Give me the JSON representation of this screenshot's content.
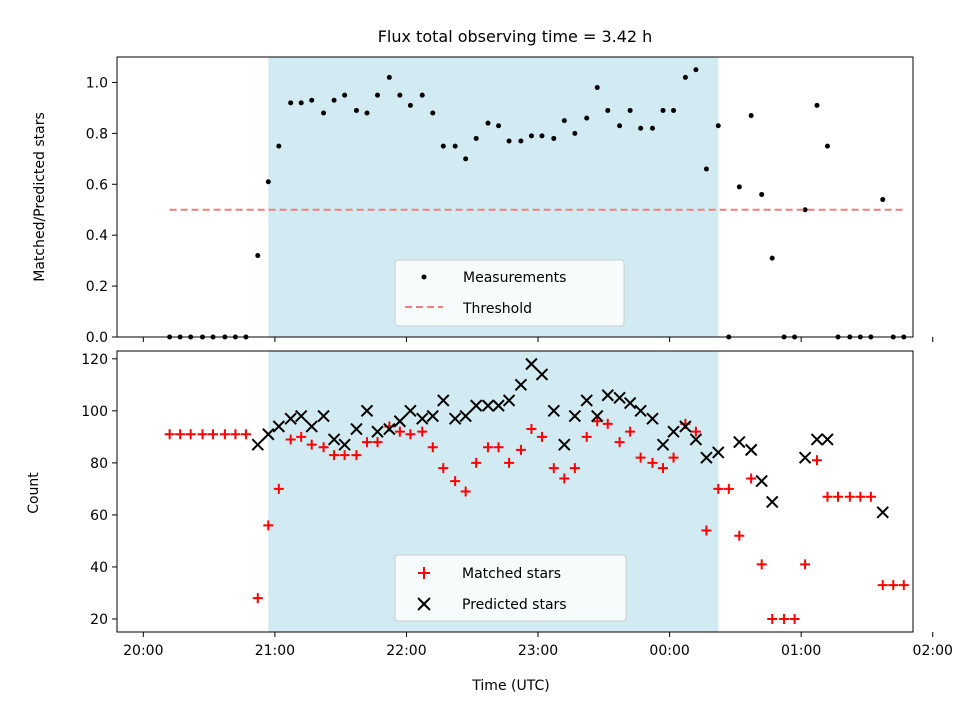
{
  "figure": {
    "title": "Flux total observing time = 3.42 h",
    "xlabel": "Time (UTC)",
    "colors": {
      "shade": "#add8e6",
      "threshold": "#f08080",
      "matched": "#ff0000",
      "predicted": "#000000",
      "measurements": "#000000"
    }
  },
  "chart_data": [
    {
      "type": "scatter",
      "panel": "top",
      "ylabel": "Matched/Predicted stars",
      "xlim": [
        -0.2,
        5.85
      ],
      "ylim": [
        0,
        1.1
      ],
      "xtick_values": [
        0,
        1,
        2,
        3,
        4,
        5,
        6
      ],
      "ytick_values": [
        0,
        0.2,
        0.4,
        0.6,
        0.8,
        1.0
      ],
      "ytick_labels": [
        "0.0",
        "0.2",
        "0.4",
        "0.6",
        "0.8",
        "1.0"
      ],
      "shaded_span": [
        0.95,
        4.37
      ],
      "legend": {
        "position": "lower center",
        "entries": [
          "Measurements",
          "Threshold"
        ]
      },
      "series": [
        {
          "name": "Measurements",
          "marker": "dot",
          "points": [
            [
              0.2,
              0.0
            ],
            [
              0.28,
              0.0
            ],
            [
              0.36,
              0.0
            ],
            [
              0.45,
              0.0
            ],
            [
              0.53,
              0.0
            ],
            [
              0.62,
              0.0
            ],
            [
              0.7,
              0.0
            ],
            [
              0.78,
              0.0
            ],
            [
              0.87,
              0.32
            ],
            [
              0.95,
              0.61
            ],
            [
              1.03,
              0.75
            ],
            [
              1.12,
              0.92
            ],
            [
              1.2,
              0.92
            ],
            [
              1.28,
              0.93
            ],
            [
              1.37,
              0.88
            ],
            [
              1.45,
              0.93
            ],
            [
              1.53,
              0.95
            ],
            [
              1.62,
              0.89
            ],
            [
              1.7,
              0.88
            ],
            [
              1.78,
              0.95
            ],
            [
              1.87,
              1.02
            ],
            [
              1.95,
              0.95
            ],
            [
              2.03,
              0.91
            ],
            [
              2.12,
              0.95
            ],
            [
              2.2,
              0.88
            ],
            [
              2.28,
              0.75
            ],
            [
              2.37,
              0.75
            ],
            [
              2.45,
              0.7
            ],
            [
              2.53,
              0.78
            ],
            [
              2.62,
              0.84
            ],
            [
              2.7,
              0.83
            ],
            [
              2.78,
              0.77
            ],
            [
              2.87,
              0.77
            ],
            [
              2.95,
              0.79
            ],
            [
              3.03,
              0.79
            ],
            [
              3.12,
              0.78
            ],
            [
              3.2,
              0.85
            ],
            [
              3.28,
              0.8
            ],
            [
              3.37,
              0.86
            ],
            [
              3.45,
              0.98
            ],
            [
              3.53,
              0.89
            ],
            [
              3.62,
              0.83
            ],
            [
              3.7,
              0.89
            ],
            [
              3.78,
              0.82
            ],
            [
              3.87,
              0.82
            ],
            [
              3.95,
              0.89
            ],
            [
              4.03,
              0.89
            ],
            [
              4.12,
              1.02
            ],
            [
              4.2,
              1.05
            ],
            [
              4.28,
              0.66
            ],
            [
              4.37,
              0.83
            ],
            [
              4.45,
              0.0
            ],
            [
              4.53,
              0.59
            ],
            [
              4.62,
              0.87
            ],
            [
              4.7,
              0.56
            ],
            [
              4.78,
              0.31
            ],
            [
              4.87,
              0.0
            ],
            [
              4.95,
              0.0
            ],
            [
              5.03,
              0.5
            ],
            [
              5.12,
              0.91
            ],
            [
              5.2,
              0.75
            ],
            [
              5.28,
              0.0
            ],
            [
              5.37,
              0.0
            ],
            [
              5.45,
              0.0
            ],
            [
              5.53,
              0.0
            ],
            [
              5.62,
              0.54
            ],
            [
              5.7,
              0.0
            ],
            [
              5.78,
              0.0
            ]
          ]
        },
        {
          "name": "Threshold",
          "marker": "dashed-line",
          "points": [
            [
              0.2,
              0.5
            ],
            [
              5.78,
              0.5
            ]
          ]
        }
      ]
    },
    {
      "type": "scatter",
      "panel": "bottom",
      "ylabel": "Count",
      "xlabel": "Time (UTC)",
      "xlim": [
        -0.2,
        5.85
      ],
      "ylim": [
        15,
        123
      ],
      "xtick_values": [
        0,
        1,
        2,
        3,
        4,
        5,
        6
      ],
      "xtick_labels": [
        "20:00",
        "21:00",
        "22:00",
        "23:00",
        "00:00",
        "01:00",
        "02:00"
      ],
      "ytick_values": [
        20,
        40,
        60,
        80,
        100,
        120
      ],
      "ytick_labels": [
        "20",
        "40",
        "60",
        "80",
        "100",
        "120"
      ],
      "shaded_span": [
        0.95,
        4.37
      ],
      "legend": {
        "position": "lower center",
        "entries": [
          "Matched stars",
          "Predicted stars"
        ]
      },
      "series": [
        {
          "name": "Matched stars",
          "marker": "plus",
          "points": [
            [
              0.2,
              91
            ],
            [
              0.28,
              91
            ],
            [
              0.36,
              91
            ],
            [
              0.45,
              91
            ],
            [
              0.53,
              91
            ],
            [
              0.62,
              91
            ],
            [
              0.7,
              91
            ],
            [
              0.78,
              91
            ],
            [
              0.87,
              28
            ],
            [
              0.95,
              56
            ],
            [
              1.03,
              70
            ],
            [
              1.12,
              89
            ],
            [
              1.2,
              90
            ],
            [
              1.28,
              87
            ],
            [
              1.37,
              86
            ],
            [
              1.45,
              83
            ],
            [
              1.53,
              83
            ],
            [
              1.62,
              83
            ],
            [
              1.7,
              88
            ],
            [
              1.78,
              88
            ],
            [
              1.87,
              94
            ],
            [
              1.95,
              92
            ],
            [
              2.03,
              91
            ],
            [
              2.12,
              92
            ],
            [
              2.2,
              86
            ],
            [
              2.28,
              78
            ],
            [
              2.37,
              73
            ],
            [
              2.45,
              69
            ],
            [
              2.53,
              80
            ],
            [
              2.62,
              86
            ],
            [
              2.7,
              86
            ],
            [
              2.78,
              80
            ],
            [
              2.87,
              85
            ],
            [
              2.95,
              93
            ],
            [
              3.03,
              90
            ],
            [
              3.12,
              78
            ],
            [
              3.2,
              74
            ],
            [
              3.28,
              78
            ],
            [
              3.37,
              90
            ],
            [
              3.45,
              96
            ],
            [
              3.53,
              95
            ],
            [
              3.62,
              88
            ],
            [
              3.7,
              92
            ],
            [
              3.78,
              82
            ],
            [
              3.87,
              80
            ],
            [
              3.95,
              78
            ],
            [
              4.03,
              82
            ],
            [
              4.12,
              95
            ],
            [
              4.2,
              92
            ],
            [
              4.28,
              54
            ],
            [
              4.37,
              70
            ],
            [
              4.45,
              70
            ],
            [
              4.53,
              52
            ],
            [
              4.62,
              74
            ],
            [
              4.7,
              41
            ],
            [
              4.78,
              20
            ],
            [
              4.87,
              20
            ],
            [
              4.95,
              20
            ],
            [
              5.03,
              41
            ],
            [
              5.12,
              81
            ],
            [
              5.2,
              67
            ],
            [
              5.28,
              67
            ],
            [
              5.37,
              67
            ],
            [
              5.45,
              67
            ],
            [
              5.53,
              67
            ],
            [
              5.62,
              33
            ],
            [
              5.7,
              33
            ],
            [
              5.78,
              33
            ]
          ]
        },
        {
          "name": "Predicted stars",
          "marker": "x",
          "points": [
            [
              0.87,
              87
            ],
            [
              0.95,
              91
            ],
            [
              1.03,
              94
            ],
            [
              1.12,
              97
            ],
            [
              1.2,
              98
            ],
            [
              1.28,
              94
            ],
            [
              1.37,
              98
            ],
            [
              1.45,
              89
            ],
            [
              1.53,
              87
            ],
            [
              1.62,
              93
            ],
            [
              1.7,
              100
            ],
            [
              1.78,
              92
            ],
            [
              1.87,
              93
            ],
            [
              1.95,
              96
            ],
            [
              2.03,
              100
            ],
            [
              2.12,
              97
            ],
            [
              2.2,
              98
            ],
            [
              2.28,
              104
            ],
            [
              2.37,
              97
            ],
            [
              2.45,
              98
            ],
            [
              2.53,
              102
            ],
            [
              2.62,
              102
            ],
            [
              2.7,
              102
            ],
            [
              2.78,
              104
            ],
            [
              2.87,
              110
            ],
            [
              2.95,
              118
            ],
            [
              3.03,
              114
            ],
            [
              3.12,
              100
            ],
            [
              3.2,
              87
            ],
            [
              3.28,
              98
            ],
            [
              3.37,
              104
            ],
            [
              3.45,
              98
            ],
            [
              3.53,
              106
            ],
            [
              3.62,
              105
            ],
            [
              3.7,
              103
            ],
            [
              3.78,
              100
            ],
            [
              3.87,
              97
            ],
            [
              3.95,
              87
            ],
            [
              4.03,
              92
            ],
            [
              4.12,
              94
            ],
            [
              4.2,
              89
            ],
            [
              4.28,
              82
            ],
            [
              4.37,
              84
            ],
            [
              4.53,
              88
            ],
            [
              4.62,
              85
            ],
            [
              4.7,
              73
            ],
            [
              4.78,
              65
            ],
            [
              5.03,
              82
            ],
            [
              5.12,
              89
            ],
            [
              5.2,
              89
            ],
            [
              5.62,
              61
            ]
          ]
        }
      ]
    }
  ]
}
